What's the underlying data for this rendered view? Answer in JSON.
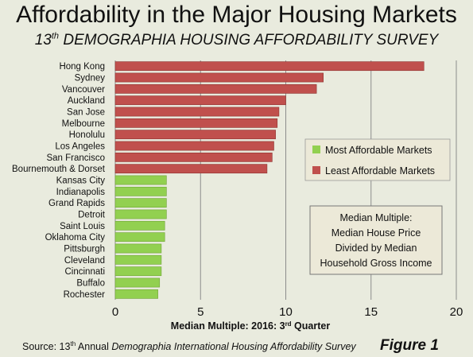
{
  "header": {
    "title": "Affordability in the Major Housing Markets",
    "subtitle_prefix": "13",
    "subtitle_sup": "th",
    "subtitle_rest": " DEMOGRAPHIA HOUSING AFFORDABILITY SURVEY"
  },
  "colors": {
    "least": "#c0504d",
    "most": "#92d050",
    "grid": "#8c8c8c",
    "background": "#e9ebde",
    "box_fill": "#ece9d8"
  },
  "chart_data": {
    "type": "bar",
    "orientation": "horizontal",
    "categories": [
      "Hong Kong",
      "Sydney",
      "Vancouver",
      "Auckland",
      "San Jose",
      "Melbourne",
      "Honolulu",
      "Los Angeles",
      "San Francisco",
      "Bournemouth & Dorset",
      "Kansas City",
      "Indianapolis",
      "Grand Rapids",
      "Detroit",
      "Saint Louis",
      "Oklahoma City",
      "Pittsburgh",
      "Cleveland",
      "Cincinnati",
      "Buffalo",
      "Rochester"
    ],
    "values": [
      18.1,
      12.2,
      11.8,
      10.0,
      9.6,
      9.5,
      9.4,
      9.3,
      9.2,
      8.9,
      3.0,
      3.0,
      3.0,
      3.0,
      2.9,
      2.9,
      2.7,
      2.7,
      2.7,
      2.6,
      2.5
    ],
    "groups": [
      "least",
      "least",
      "least",
      "least",
      "least",
      "least",
      "least",
      "least",
      "least",
      "least",
      "most",
      "most",
      "most",
      "most",
      "most",
      "most",
      "most",
      "most",
      "most",
      "most",
      "most"
    ],
    "legend": [
      {
        "key": "most",
        "label": "Most Affordable Markets"
      },
      {
        "key": "least",
        "label": "Least Affordable Markets"
      }
    ],
    "xlim": [
      0,
      20
    ],
    "xticks": [
      0,
      5,
      10,
      15,
      20
    ],
    "xlabel_main": "Median Multiple: 2016: 3",
    "xlabel_sup": "rd",
    "xlabel_tail": " Quarter",
    "grid": true,
    "legend_position": "right",
    "note_lines": [
      "Median Multiple:",
      "Median House Price",
      "Divided by Median",
      "Household Gross Income"
    ]
  },
  "footer": {
    "source_prefix": "Source: 13",
    "source_sup": "th",
    "source_mid": " Annual ",
    "source_italic": "Demographia International Housing Affordability Survey",
    "figure_label": "Figure 1"
  }
}
